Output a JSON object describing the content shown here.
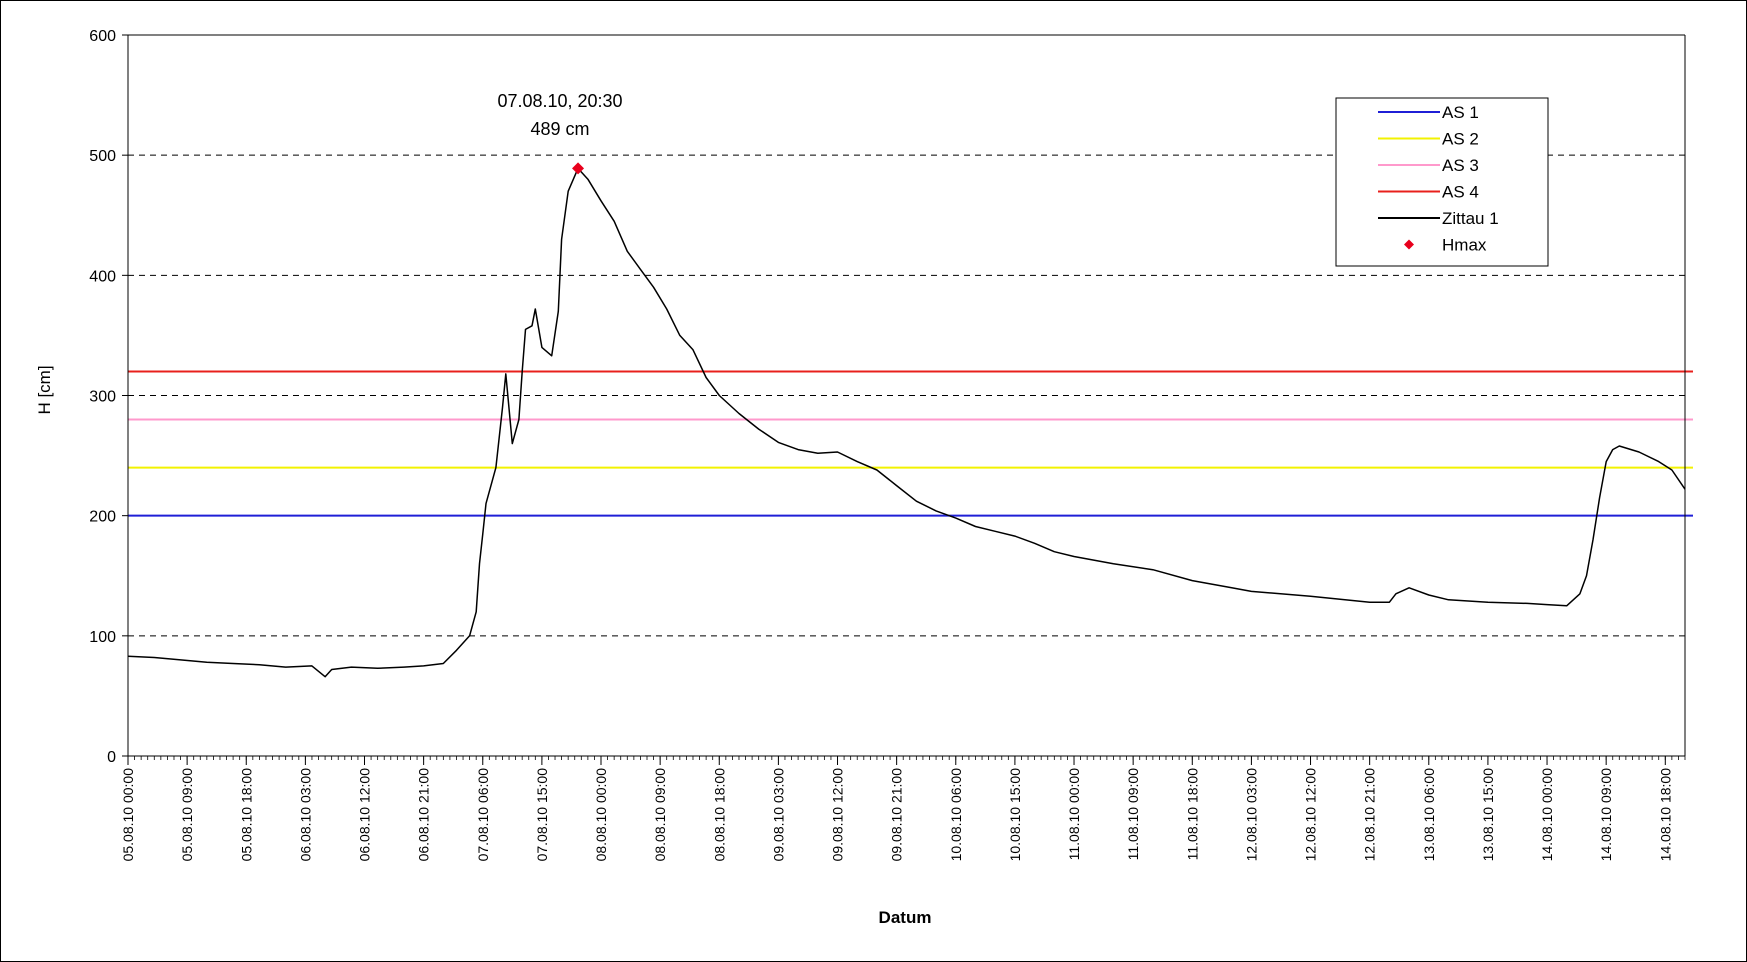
{
  "chart_data": {
    "type": "line",
    "xlabel": "Datum",
    "ylabel": "H [cm]",
    "ylim": [
      0,
      600
    ],
    "yticks": [
      0,
      100,
      200,
      300,
      400,
      500,
      600
    ],
    "grid": "horizontal dashed",
    "legend_position": "top-right",
    "x_start": "05.08.10 00:00",
    "x_end": "14.08.10 21:00",
    "tick_labels": [
      "05.08.10 00:00",
      "05.08.10 09:00",
      "05.08.10 18:00",
      "06.08.10 03:00",
      "06.08.10 12:00",
      "06.08.10 21:00",
      "07.08.10 06:00",
      "07.08.10 15:00",
      "08.08.10 00:00",
      "08.08.10 09:00",
      "08.08.10 18:00",
      "09.08.10 03:00",
      "09.08.10 12:00",
      "09.08.10 21:00",
      "10.08.10 06:00",
      "10.08.10 15:00",
      "11.08.10 00:00",
      "11.08.10 09:00",
      "11.08.10 18:00",
      "12.08.10 03:00",
      "12.08.10 12:00",
      "12.08.10 21:00",
      "13.08.10 06:00",
      "13.08.10 15:00",
      "14.08.10 00:00",
      "14.08.10 09:00",
      "14.08.10 18:00"
    ],
    "thresholds": [
      {
        "name": "AS 1",
        "value": 200,
        "color": "#1f1fd6"
      },
      {
        "name": "AS 2",
        "value": 240,
        "color": "#f2f200"
      },
      {
        "name": "AS 3",
        "value": 280,
        "color": "#ff99cc"
      },
      {
        "name": "AS 4",
        "value": 320,
        "color": "#e8201c"
      }
    ],
    "series": [
      {
        "name": "Zittau 1",
        "color": "#000000",
        "points": [
          [
            "05.08.10 00:00",
            83
          ],
          [
            "05.08.10 04:00",
            82
          ],
          [
            "05.08.10 08:00",
            80
          ],
          [
            "05.08.10 12:00",
            78
          ],
          [
            "05.08.10 16:00",
            77
          ],
          [
            "05.08.10 20:00",
            76
          ],
          [
            "06.08.10 00:00",
            74
          ],
          [
            "06.08.10 04:00",
            75
          ],
          [
            "06.08.10 06:00",
            66
          ],
          [
            "06.08.10 07:00",
            72
          ],
          [
            "06.08.10 10:00",
            74
          ],
          [
            "06.08.10 14:00",
            73
          ],
          [
            "06.08.10 18:00",
            74
          ],
          [
            "06.08.10 21:00",
            75
          ],
          [
            "07.08.10 00:00",
            77
          ],
          [
            "07.08.10 02:00",
            88
          ],
          [
            "07.08.10 04:00",
            100
          ],
          [
            "07.08.10 05:00",
            120
          ],
          [
            "07.08.10 05:30",
            160
          ],
          [
            "07.08.10 06:00",
            185
          ],
          [
            "07.08.10 06:30",
            210
          ],
          [
            "07.08.10 08:00",
            240
          ],
          [
            "07.08.10 09:00",
            290
          ],
          [
            "07.08.10 09:30",
            318
          ],
          [
            "07.08.10 10:30",
            260
          ],
          [
            "07.08.10 11:30",
            280
          ],
          [
            "07.08.10 12:00",
            320
          ],
          [
            "07.08.10 12:30",
            355
          ],
          [
            "07.08.10 13:30",
            358
          ],
          [
            "07.08.10 14:00",
            372
          ],
          [
            "07.08.10 15:00",
            340
          ],
          [
            "07.08.10 16:30",
            333
          ],
          [
            "07.08.10 17:30",
            370
          ],
          [
            "07.08.10 18:00",
            430
          ],
          [
            "07.08.10 19:00",
            470
          ],
          [
            "07.08.10 20:30",
            489
          ],
          [
            "07.08.10 22:00",
            480
          ],
          [
            "08.08.10 00:00",
            462
          ],
          [
            "08.08.10 02:00",
            445
          ],
          [
            "08.08.10 04:00",
            420
          ],
          [
            "08.08.10 06:00",
            405
          ],
          [
            "08.08.10 08:00",
            390
          ],
          [
            "08.08.10 10:00",
            372
          ],
          [
            "08.08.10 12:00",
            350
          ],
          [
            "08.08.10 14:00",
            338
          ],
          [
            "08.08.10 16:00",
            315
          ],
          [
            "08.08.10 18:00",
            300
          ],
          [
            "08.08.10 21:00",
            285
          ],
          [
            "09.08.10 00:00",
            272
          ],
          [
            "09.08.10 03:00",
            261
          ],
          [
            "09.08.10 06:00",
            255
          ],
          [
            "09.08.10 09:00",
            252
          ],
          [
            "09.08.10 12:00",
            253
          ],
          [
            "09.08.10 15:00",
            245
          ],
          [
            "09.08.10 18:00",
            238
          ],
          [
            "09.08.10 21:00",
            225
          ],
          [
            "10.08.10 00:00",
            212
          ],
          [
            "10.08.10 03:00",
            204
          ],
          [
            "10.08.10 06:00",
            198
          ],
          [
            "10.08.10 09:00",
            191
          ],
          [
            "10.08.10 12:00",
            187
          ],
          [
            "10.08.10 15:00",
            183
          ],
          [
            "10.08.10 18:00",
            177
          ],
          [
            "10.08.10 21:00",
            170
          ],
          [
            "11.08.10 00:00",
            166
          ],
          [
            "11.08.10 06:00",
            160
          ],
          [
            "11.08.10 12:00",
            155
          ],
          [
            "11.08.10 18:00",
            146
          ],
          [
            "12.08.10 00:00",
            140
          ],
          [
            "12.08.10 03:00",
            137
          ],
          [
            "12.08.10 12:00",
            133
          ],
          [
            "12.08.10 21:00",
            128
          ],
          [
            "13.08.10 00:00",
            128
          ],
          [
            "13.08.10 01:00",
            135
          ],
          [
            "13.08.10 03:00",
            140
          ],
          [
            "13.08.10 06:00",
            134
          ],
          [
            "13.08.10 09:00",
            130
          ],
          [
            "13.08.10 15:00",
            128
          ],
          [
            "13.08.10 21:00",
            127
          ],
          [
            "14.08.10 00:00",
            126
          ],
          [
            "14.08.10 03:00",
            125
          ],
          [
            "14.08.10 05:00",
            135
          ],
          [
            "14.08.10 06:00",
            150
          ],
          [
            "14.08.10 07:00",
            180
          ],
          [
            "14.08.10 08:00",
            215
          ],
          [
            "14.08.10 09:00",
            245
          ],
          [
            "14.08.10 10:00",
            255
          ],
          [
            "14.08.10 11:00",
            258
          ],
          [
            "14.08.10 14:00",
            253
          ],
          [
            "14.08.10 17:00",
            245
          ],
          [
            "14.08.10 19:00",
            238
          ],
          [
            "14.08.10 21:00",
            222
          ]
        ]
      }
    ],
    "hmax": {
      "name": "Hmax",
      "date": "07.08.10 20:30",
      "value": 489,
      "color": "#e8001c",
      "label_line1": "07.08.10, 20:30",
      "label_line2": "489 cm"
    }
  }
}
